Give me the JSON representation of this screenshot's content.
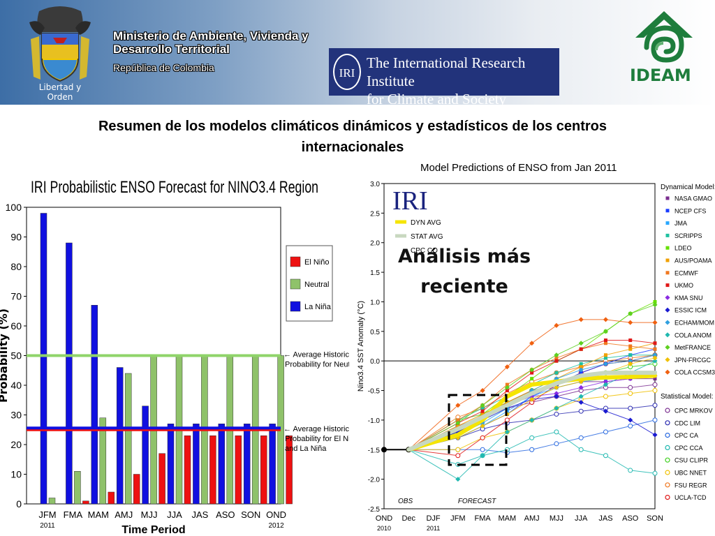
{
  "header": {
    "coat_caption": "Libertad y Orden",
    "ministry_line1": "Ministerio de Ambiente, Vivienda y",
    "ministry_line2": "Desarrollo Territorial",
    "ministry_sub": "República de Colombia",
    "iri_monogram": "IRI",
    "iri_name_line1": "The International Research Institute",
    "iri_name_line2": "for Climate and Society",
    "ideam_label": "IDEAM",
    "colors": {
      "ideam_green": "#1e7d3c",
      "iri_navy": "#22337b",
      "header_blue": "#3d6ea6"
    }
  },
  "title_line1": "Resumen de los modelos climáticos dinámicos y estadísticos de los centros",
  "title_line2": "internacionales",
  "overlay_line1": "Análisis más",
  "overlay_line2": "reciente",
  "chart_data": [
    {
      "type": "bar",
      "title": "IRI Probabilistic ENSO Forecast for NINO3.4 Region",
      "xlabel": "Time Period",
      "ylabel": "Probability (%)",
      "ylim": [
        0,
        100
      ],
      "yticks": [
        0,
        10,
        20,
        30,
        40,
        50,
        60,
        70,
        80,
        90,
        100
      ],
      "categories": [
        "JFM",
        "FMA",
        "MAM",
        "AMJ",
        "MJJ",
        "JJA",
        "JAS",
        "ASO",
        "SON",
        "OND"
      ],
      "category_notes": {
        "JFM": "2011",
        "OND": "2012"
      },
      "series": [
        {
          "name": "La Niña",
          "color": "#1010e0",
          "values": [
            98,
            88,
            67,
            46,
            33,
            27,
            27,
            27,
            27,
            27
          ]
        },
        {
          "name": "Neutral",
          "color": "#8fc26a",
          "values": [
            2,
            11,
            29,
            44,
            50,
            50,
            50,
            50,
            50,
            50
          ]
        },
        {
          "name": "El Niño",
          "color": "#ee1111",
          "values": [
            0,
            1,
            4,
            10,
            17,
            23,
            23,
            23,
            23,
            23
          ]
        }
      ],
      "legend": [
        "El Niño",
        "Neutral",
        "La Niña"
      ],
      "legend_position": "right",
      "reference_lines": [
        {
          "value": 50,
          "color": "#8fd46a",
          "label_line1": "← Average Historical",
          "label_line2": "Probability for Neutral"
        },
        {
          "value": 25,
          "color": "#ee1111",
          "label_line1": "← Average Historical",
          "label_line2": "Probability for El Niño",
          "label_line3": "and La Niña"
        },
        {
          "value": 25.6,
          "color": "#1010e0"
        }
      ]
    },
    {
      "type": "line",
      "title": "Model Predictions of ENSO from Jan 2011",
      "ylabel": "Nino3.4 SST Anomaly (°C)",
      "ylim": [
        -2.5,
        3.0
      ],
      "yticks": [
        -2.5,
        -2.0,
        -1.5,
        -1.0,
        -0.5,
        0.0,
        0.5,
        1.0,
        1.5,
        2.0,
        2.5,
        3.0
      ],
      "yticklabels": [
        "-2.5",
        "-2.0",
        "-1.5",
        "-1.0",
        "-0.5",
        "0.0",
        "0.5",
        "1.0",
        "1.5",
        "2.0",
        "2.5",
        "3.0"
      ],
      "x": [
        "OND",
        "Dec",
        "DJF",
        "JFM",
        "FMA",
        "MAM",
        "AMJ",
        "MJJ",
        "JJA",
        "JAS",
        "ASO",
        "SON"
      ],
      "x_notes": {
        "OND": "2010",
        "DJF": "2011"
      },
      "obs_label": "OBS",
      "forecast_label": "FORECAST",
      "watermark": "IRI",
      "observed": [
        -1.5,
        -1.5
      ],
      "averages": [
        {
          "name": "DYN AVG",
          "color": "#f5e500",
          "values": [
            -1.25,
            -1.0,
            -0.6,
            -0.4,
            -0.35,
            -0.3,
            -0.28,
            -0.27,
            -0.25
          ]
        },
        {
          "name": "STAT AVG",
          "color": "#c8d8c0",
          "values": [
            -1.15,
            -0.95,
            -0.75,
            -0.55,
            -0.38,
            -0.25,
            -0.2,
            -0.2,
            -0.2
          ]
        }
      ],
      "legend_partial": "CPC CO",
      "dynamical_header": "Dynamical Model:",
      "statistical_header": "Statistical Model:",
      "dynamical": [
        {
          "name": "NASA GMAO",
          "color": "#7a2d8f",
          "marker": "square",
          "values": [
            -1.2,
            -1.0,
            -0.7,
            -0.5,
            -0.45,
            -0.35,
            -0.35,
            -0.3,
            -0.3
          ]
        },
        {
          "name": "NCEP CFS",
          "color": "#1a3cff",
          "marker": "square",
          "values": [
            -1.3,
            -1.1,
            -0.9,
            -0.6,
            -0.4,
            -0.2,
            -0.05,
            0.1,
            0.2
          ]
        },
        {
          "name": "JMA",
          "color": "#2aa8ff",
          "marker": "square",
          "values": [
            -1.3,
            -1.1,
            -0.85,
            -0.6,
            -0.45,
            -0.35,
            -0.3,
            -0.25,
            -0.2
          ]
        },
        {
          "name": "SCRIPPS",
          "color": "#20c0a0",
          "marker": "square",
          "values": [
            -1.0,
            -0.8,
            -0.6,
            -0.4,
            -0.2,
            -0.05,
            0.05,
            0.1,
            0.1
          ]
        },
        {
          "name": "LDEO",
          "color": "#66e000",
          "marker": "square",
          "values": [
            -1.2,
            -0.9,
            -0.6,
            -0.3,
            0.0,
            0.2,
            0.5,
            0.8,
            1.0
          ]
        },
        {
          "name": "AUS/POAMA",
          "color": "#f0a000",
          "marker": "square",
          "values": [
            -1.1,
            -0.9,
            -0.7,
            -0.5,
            -0.3,
            -0.1,
            0.1,
            0.2,
            0.3
          ]
        },
        {
          "name": "ECMWF",
          "color": "#f07820",
          "marker": "square",
          "values": [
            -1.0,
            -0.75,
            -0.4,
            -0.15,
            0.05,
            0.2,
            0.3,
            0.25,
            0.2
          ]
        },
        {
          "name": "UKMO",
          "color": "#e01818",
          "marker": "square",
          "values": [
            -1.05,
            -0.85,
            -0.5,
            -0.2,
            0.0,
            0.2,
            0.35,
            0.35,
            0.3
          ]
        },
        {
          "name": "KMA SNU",
          "color": "#8a2be2",
          "marker": "diamond",
          "values": [
            -1.15,
            -0.95,
            -0.75,
            -0.6,
            -0.55,
            -0.45,
            -0.35,
            -0.3,
            -0.25
          ]
        },
        {
          "name": "ESSIC ICM",
          "color": "#1a1ad0",
          "marker": "diamond",
          "values": [
            -1.2,
            -1.0,
            -0.8,
            -0.65,
            -0.6,
            -0.7,
            -0.85,
            -1.0,
            -1.25
          ]
        },
        {
          "name": "ECHAM/MOM",
          "color": "#30a0e0",
          "marker": "diamond",
          "values": [
            -1.25,
            -1.05,
            -0.8,
            -0.5,
            -0.3,
            -0.15,
            -0.05,
            0.0,
            0.1
          ]
        },
        {
          "name": "COLA ANOM",
          "color": "#20b8b0",
          "marker": "diamond",
          "values": [
            -2.0,
            -1.6,
            -1.2,
            -1.0,
            -0.8,
            -0.6,
            -0.4,
            -0.2,
            0.0
          ]
        },
        {
          "name": "MetFRANCE",
          "color": "#5ed020",
          "marker": "diamond",
          "values": [
            -1.05,
            -0.75,
            -0.45,
            -0.15,
            0.1,
            0.3,
            0.5,
            0.8,
            0.95
          ]
        },
        {
          "name": "JPN-FRCGC",
          "color": "#f0c000",
          "marker": "diamond",
          "values": [
            -1.3,
            -1.1,
            -0.9,
            -0.65,
            -0.45,
            -0.35,
            -0.2,
            -0.05,
            0.05
          ]
        },
        {
          "name": "COLA CCSM3",
          "color": "#f06010",
          "marker": "diamond",
          "values": [
            -0.75,
            -0.5,
            -0.1,
            0.3,
            0.6,
            0.7,
            0.7,
            0.65,
            0.65
          ]
        }
      ],
      "statistical": [
        {
          "name": "CPC MRKOV",
          "color": "#7a2d8f",
          "values": [
            -1.1,
            -0.95,
            -0.8,
            -0.7,
            -0.6,
            -0.5,
            -0.45,
            -0.45,
            -0.4
          ]
        },
        {
          "name": "CDC LIM",
          "color": "#2a2ab0",
          "values": [
            -1.3,
            -1.15,
            -1.05,
            -1.0,
            -0.9,
            -0.85,
            -0.8,
            -0.8,
            -0.75
          ]
        },
        {
          "name": "CPC CA",
          "color": "#2a6ae0",
          "values": [
            -1.5,
            -1.5,
            -1.55,
            -1.5,
            -1.4,
            -1.3,
            -1.2,
            -1.1,
            -1.0
          ]
        },
        {
          "name": "CPC CCA",
          "color": "#20b8b0",
          "values": [
            -1.75,
            -1.6,
            -1.5,
            -1.3,
            -1.2,
            -1.5,
            -1.6,
            -1.85,
            -1.9
          ]
        },
        {
          "name": "CSU CLIPR",
          "color": "#40d020",
          "values": [
            -1.0,
            -0.9,
            -0.7,
            -0.5,
            -0.4,
            -0.3,
            -0.2,
            -0.1,
            -0.05
          ]
        },
        {
          "name": "UBC NNET",
          "color": "#f0c000",
          "values": [
            -1.5,
            -1.3,
            -1.2,
            -1.0,
            -0.8,
            -0.65,
            -0.6,
            -0.55,
            -0.5
          ]
        },
        {
          "name": "FSU REGR",
          "color": "#f07820",
          "values": [
            -0.95,
            -0.8,
            -0.55,
            -0.35,
            -0.2,
            -0.1,
            0.0,
            0.05,
            0.1
          ]
        },
        {
          "name": "UCLA-TCD",
          "color": "#e01818",
          "values": [
            -1.6,
            -1.3,
            -1.0,
            -0.7,
            -0.4,
            -0.2,
            -0.05,
            0.0,
            0.1
          ]
        }
      ],
      "legend_position": "right"
    }
  ]
}
